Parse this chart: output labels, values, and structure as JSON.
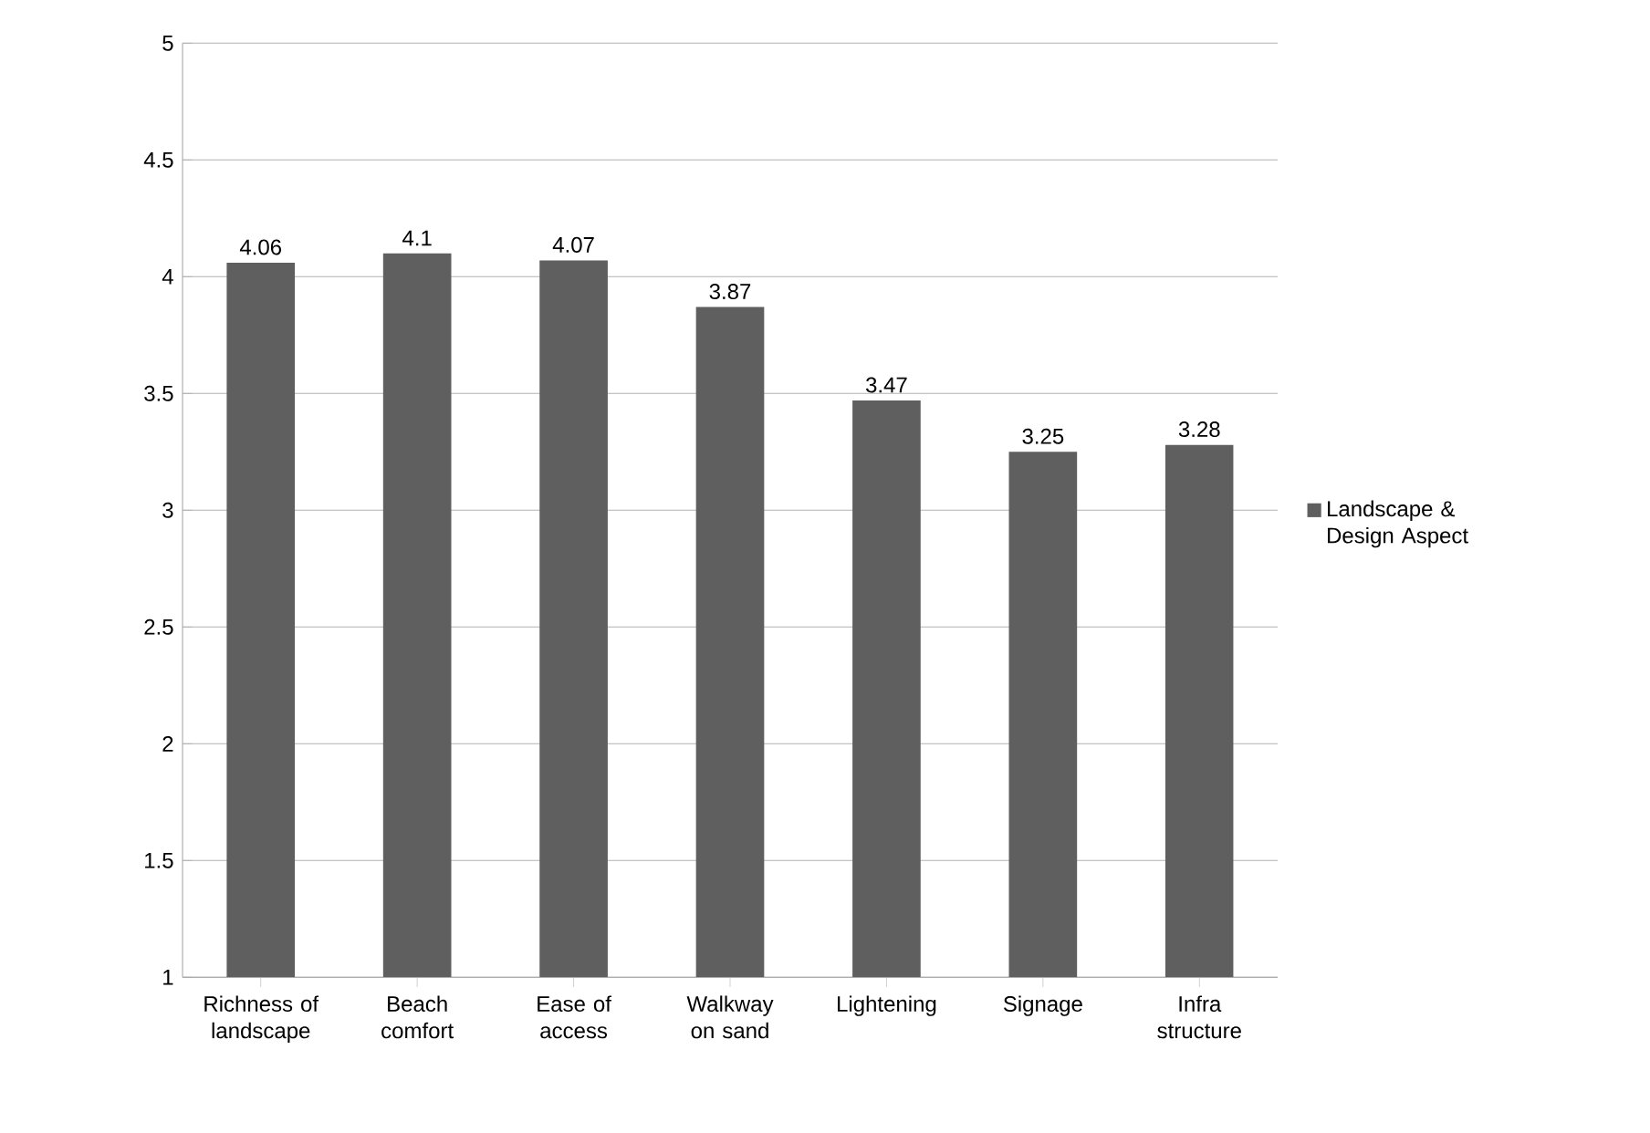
{
  "chart_data": {
    "type": "bar",
    "categories": [
      "Richness of landscape",
      "Beach comfort",
      "Ease of access",
      "Walkway on sand",
      "Lightening",
      "Signage",
      "Infra structure"
    ],
    "series": [
      {
        "name": "Landscape & Design Aspect",
        "color": "#5f5f5f",
        "values": [
          4.06,
          4.1,
          4.07,
          3.87,
          3.47,
          3.25,
          3.28
        ]
      }
    ],
    "data_labels": true,
    "ylim": [
      1,
      5
    ],
    "yticks": [
      1,
      1.5,
      2,
      2.5,
      3,
      3.5,
      4,
      4.5,
      5
    ],
    "grid": "y",
    "legend": "right"
  }
}
